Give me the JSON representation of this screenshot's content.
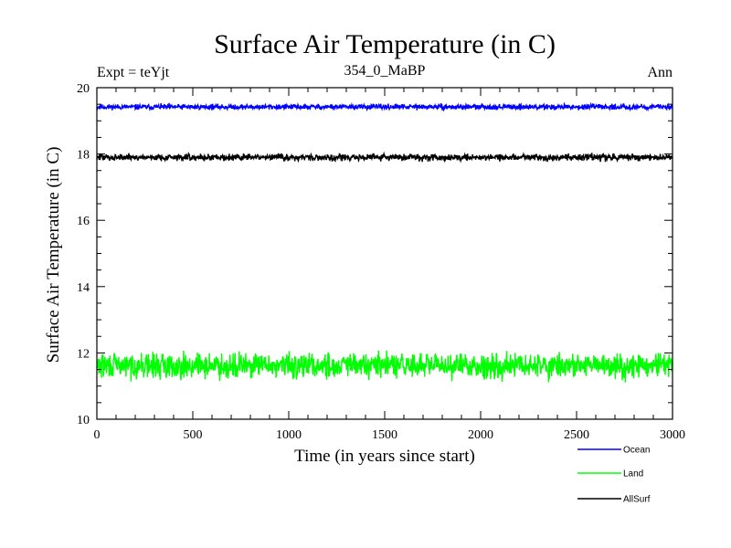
{
  "chart_data": {
    "type": "line",
    "title": "Surface Air Temperature (in C)",
    "subtitle_left": "Expt = teYjt",
    "subtitle_center": "354_0_MaBP",
    "subtitle_right": "Ann",
    "xlabel": "Time (in years since start)",
    "ylabel": "Surface Air Temperature (in C)",
    "xlim": [
      0,
      3000
    ],
    "ylim": [
      10,
      20
    ],
    "x_ticks": [
      0,
      500,
      1000,
      1500,
      2000,
      2500,
      3000
    ],
    "x_tick_labels": [
      "0",
      "500",
      "1000",
      "1500",
      "2000",
      "2500",
      "3000"
    ],
    "y_ticks": [
      10,
      12,
      14,
      16,
      18,
      20
    ],
    "y_tick_labels": [
      "10",
      "12",
      "14",
      "16",
      "18",
      "20"
    ],
    "grid": false,
    "legend_position": "bottom-right, outside plot",
    "series": [
      {
        "name": "Ocean",
        "color": "#0000ff",
        "mean": 19.42,
        "noise_range": [
          19.32,
          19.55
        ]
      },
      {
        "name": "Land",
        "color": "#00ff00",
        "mean": 11.62,
        "noise_range": [
          11.1,
          12.2
        ]
      },
      {
        "name": "AllSurf",
        "color": "#000000",
        "mean": 17.9,
        "noise_range": [
          17.75,
          18.05
        ]
      }
    ]
  }
}
